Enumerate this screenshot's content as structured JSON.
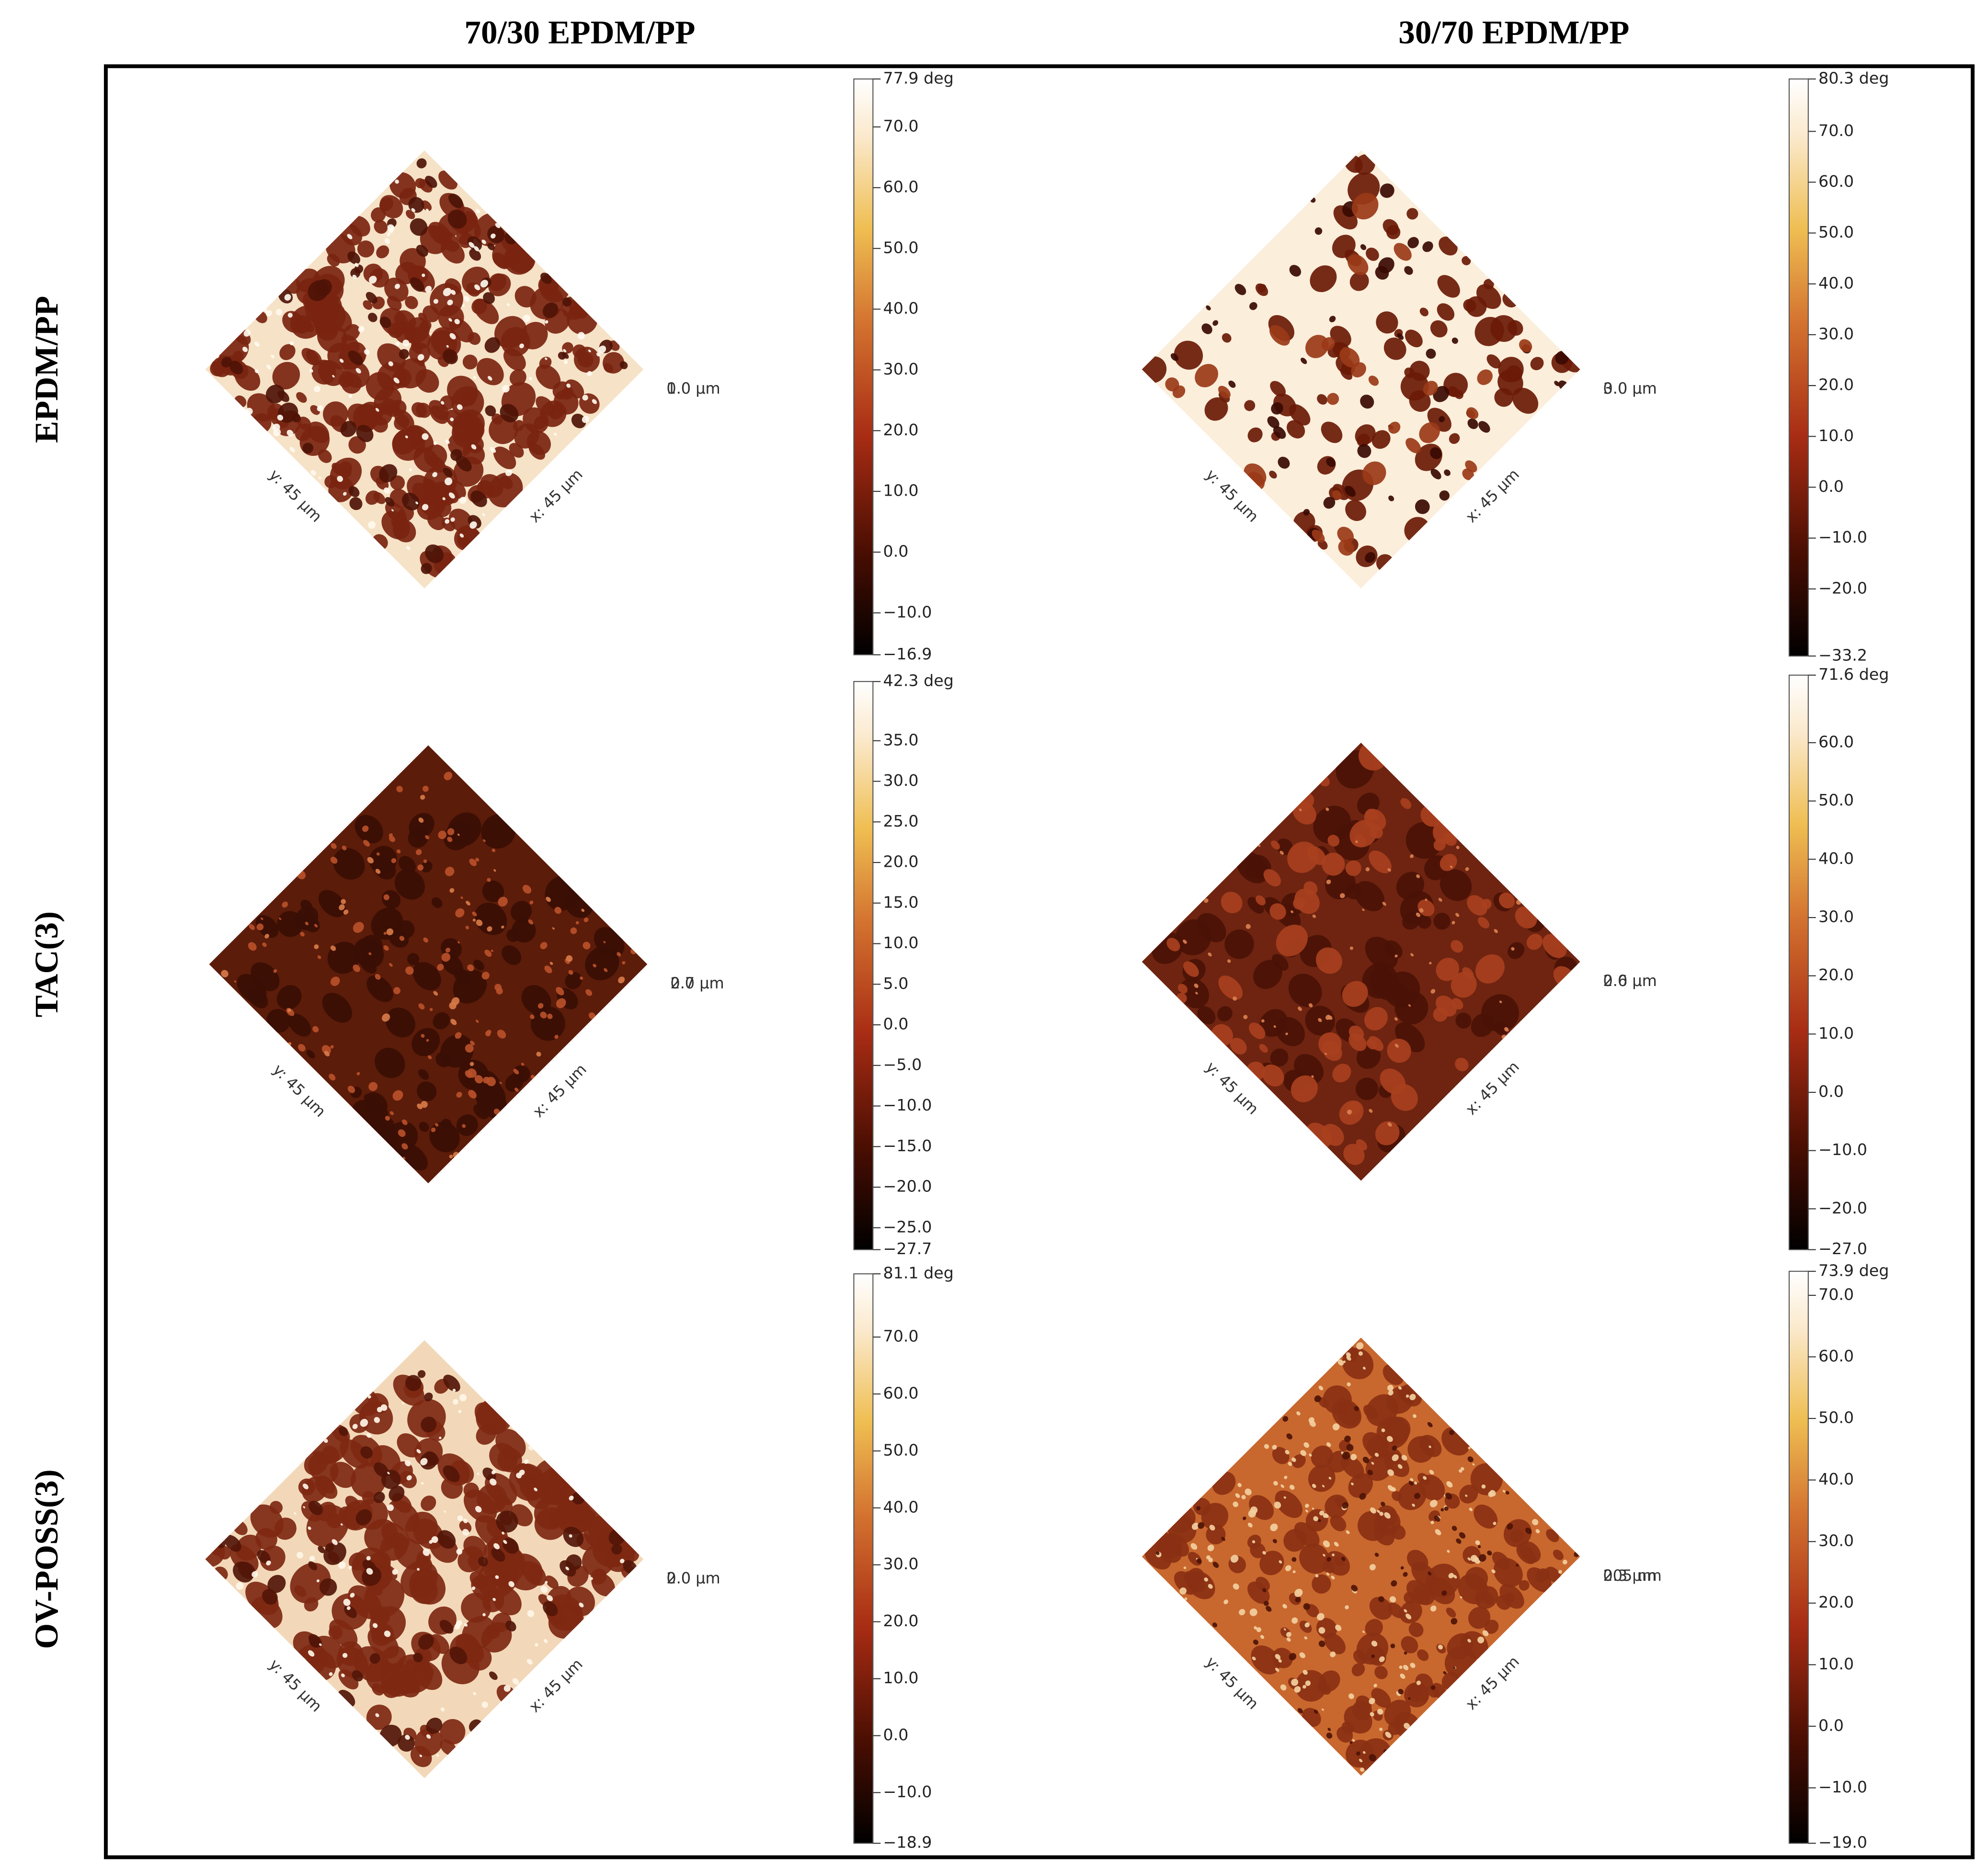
{
  "columns": [
    "70/30 EPDM/PP",
    "30/70 EPDM/PP"
  ],
  "rows": [
    "EPDM/PP",
    "TAC(3)",
    "OV-POSS(3)"
  ],
  "panels": [
    {
      "y_axis": "y: 45 µm",
      "x_axis": "x: 45 µm",
      "z_labels": [
        "0.0 µm",
        "1.0 µm"
      ],
      "colorbar": {
        "range": [
          -16.9,
          77.9
        ],
        "ticks": [
          {
            "value": 77.9,
            "label": "77.9 deg"
          },
          {
            "value": 70,
            "label": "70.0"
          },
          {
            "value": 60,
            "label": "60.0"
          },
          {
            "value": 50,
            "label": "50.0"
          },
          {
            "value": 40,
            "label": "40.0"
          },
          {
            "value": 30,
            "label": "30.0"
          },
          {
            "value": 20,
            "label": "20.0"
          },
          {
            "value": 10,
            "label": "10.0"
          },
          {
            "value": 0,
            "label": "0.0"
          },
          {
            "value": -10,
            "label": "−10.0"
          },
          {
            "value": -16.9,
            "label": "−16.9"
          }
        ]
      }
    },
    {
      "y_axis": "y: 45 µm",
      "x_axis": "x: 45 µm",
      "z_labels": [
        "0.0 µm",
        "3.0 µm"
      ],
      "colorbar": {
        "range": [
          -33.2,
          80.3
        ],
        "ticks": [
          {
            "value": 80.3,
            "label": "80.3 deg"
          },
          {
            "value": 70,
            "label": "70.0"
          },
          {
            "value": 60,
            "label": "60.0"
          },
          {
            "value": 50,
            "label": "50.0"
          },
          {
            "value": 40,
            "label": "40.0"
          },
          {
            "value": 30,
            "label": "30.0"
          },
          {
            "value": 20,
            "label": "20.0"
          },
          {
            "value": 10,
            "label": "10.0"
          },
          {
            "value": 0,
            "label": "0.0"
          },
          {
            "value": -10,
            "label": "−10.0"
          },
          {
            "value": -20,
            "label": "−20.0"
          },
          {
            "value": -33.2,
            "label": "−33.2"
          }
        ]
      }
    },
    {
      "y_axis": "y: 45 µm",
      "x_axis": "x: 45 µm",
      "z_labels": [
        "0.0 µm",
        "2.7 µm"
      ],
      "colorbar": {
        "range": [
          -27.7,
          42.3
        ],
        "ticks": [
          {
            "value": 42.3,
            "label": "42.3 deg"
          },
          {
            "value": 35,
            "label": "35.0"
          },
          {
            "value": 30,
            "label": "30.0"
          },
          {
            "value": 25,
            "label": "25.0"
          },
          {
            "value": 20,
            "label": "20.0"
          },
          {
            "value": 15,
            "label": "15.0"
          },
          {
            "value": 10,
            "label": "10.0"
          },
          {
            "value": 5,
            "label": "5.0"
          },
          {
            "value": 0,
            "label": "0.0"
          },
          {
            "value": -5,
            "label": "−5.0"
          },
          {
            "value": -10,
            "label": "−10.0"
          },
          {
            "value": -15,
            "label": "−15.0"
          },
          {
            "value": -20,
            "label": "−20.0"
          },
          {
            "value": -25,
            "label": "−25.0"
          },
          {
            "value": -27.7,
            "label": "−27.7"
          }
        ]
      }
    },
    {
      "y_axis": "y: 45 µm",
      "x_axis": "x: 45 µm",
      "z_labels": [
        "0.0 µm",
        "2.6 µm"
      ],
      "colorbar": {
        "range": [
          -27.0,
          71.6
        ],
        "ticks": [
          {
            "value": 71.6,
            "label": "71.6 deg"
          },
          {
            "value": 60,
            "label": "60.0"
          },
          {
            "value": 50,
            "label": "50.0"
          },
          {
            "value": 40,
            "label": "40.0"
          },
          {
            "value": 30,
            "label": "30.0"
          },
          {
            "value": 20,
            "label": "20.0"
          },
          {
            "value": 10,
            "label": "10.0"
          },
          {
            "value": 0,
            "label": "0.0"
          },
          {
            "value": -10,
            "label": "−10.0"
          },
          {
            "value": -20,
            "label": "−20.0"
          },
          {
            "value": -27.0,
            "label": "−27.0"
          }
        ]
      }
    },
    {
      "y_axis": "y: 45 µm",
      "x_axis": "x: 45 µm",
      "z_labels": [
        "0.0 µm",
        "2.0 µm"
      ],
      "colorbar": {
        "range": [
          -18.9,
          81.1
        ],
        "ticks": [
          {
            "value": 81.1,
            "label": "81.1 deg"
          },
          {
            "value": 70,
            "label": "70.0"
          },
          {
            "value": 60,
            "label": "60.0"
          },
          {
            "value": 50,
            "label": "50.0"
          },
          {
            "value": 40,
            "label": "40.0"
          },
          {
            "value": 30,
            "label": "30.0"
          },
          {
            "value": 20,
            "label": "20.0"
          },
          {
            "value": 10,
            "label": "10.0"
          },
          {
            "value": 0,
            "label": "0.0"
          },
          {
            "value": -10,
            "label": "−10.0"
          },
          {
            "value": -18.9,
            "label": "−18.9"
          }
        ]
      }
    },
    {
      "y_axis": "y: 45 µm",
      "x_axis": "x: 45 µm",
      "z_labels": [
        "205 nm",
        "0.3 µm"
      ],
      "colorbar": {
        "range": [
          -19.0,
          73.9
        ],
        "ticks": [
          {
            "value": 73.9,
            "label": "73.9 deg"
          },
          {
            "value": 70,
            "label": "70.0"
          },
          {
            "value": 60,
            "label": "60.0"
          },
          {
            "value": 50,
            "label": "50.0"
          },
          {
            "value": 40,
            "label": "40.0"
          },
          {
            "value": 30,
            "label": "30.0"
          },
          {
            "value": 20,
            "label": "20.0"
          },
          {
            "value": 10,
            "label": "10.0"
          },
          {
            "value": 0,
            "label": "0.0"
          },
          {
            "value": -10,
            "label": "−10.0"
          },
          {
            "value": -19.0,
            "label": "−19.0"
          }
        ]
      }
    }
  ]
}
